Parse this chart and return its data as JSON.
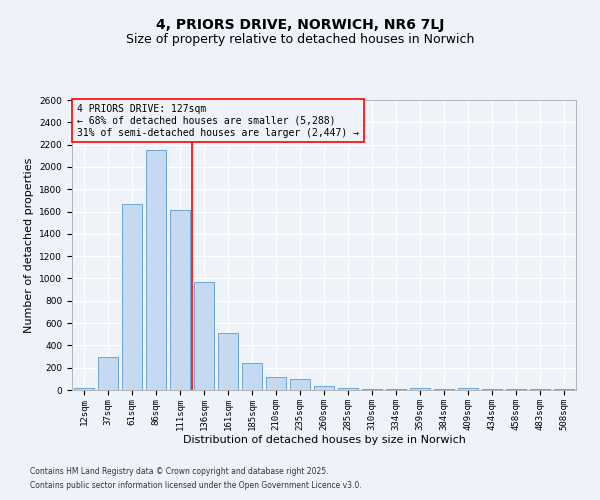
{
  "title": "4, PRIORS DRIVE, NORWICH, NR6 7LJ",
  "subtitle": "Size of property relative to detached houses in Norwich",
  "xlabel": "Distribution of detached houses by size in Norwich",
  "ylabel": "Number of detached properties",
  "categories": [
    "12sqm",
    "37sqm",
    "61sqm",
    "86sqm",
    "111sqm",
    "136sqm",
    "161sqm",
    "185sqm",
    "210sqm",
    "235sqm",
    "260sqm",
    "285sqm",
    "310sqm",
    "334sqm",
    "359sqm",
    "384sqm",
    "409sqm",
    "434sqm",
    "458sqm",
    "483sqm",
    "508sqm"
  ],
  "values": [
    20,
    300,
    1670,
    2150,
    1610,
    970,
    510,
    245,
    120,
    95,
    40,
    20,
    10,
    5,
    20,
    5,
    20,
    5,
    5,
    10,
    5
  ],
  "bar_color": "#c5d9f0",
  "bar_edge_color": "#5b9bd5",
  "vline_x": 4.5,
  "vline_color": "red",
  "annotation_text": "4 PRIORS DRIVE: 127sqm\n← 68% of detached houses are smaller (5,288)\n31% of semi-detached houses are larger (2,447) →",
  "annotation_box_color": "red",
  "ylim": [
    0,
    2600
  ],
  "yticks": [
    0,
    200,
    400,
    600,
    800,
    1000,
    1200,
    1400,
    1600,
    1800,
    2000,
    2200,
    2400,
    2600
  ],
  "footer1": "Contains HM Land Registry data © Crown copyright and database right 2025.",
  "footer2": "Contains public sector information licensed under the Open Government Licence v3.0.",
  "bg_color": "#eef2f9",
  "grid_color": "#ffffff",
  "title_fontsize": 10,
  "subtitle_fontsize": 9,
  "tick_fontsize": 6.5,
  "ylabel_fontsize": 8,
  "xlabel_fontsize": 8,
  "footer_fontsize": 5.5,
  "annot_fontsize": 7
}
